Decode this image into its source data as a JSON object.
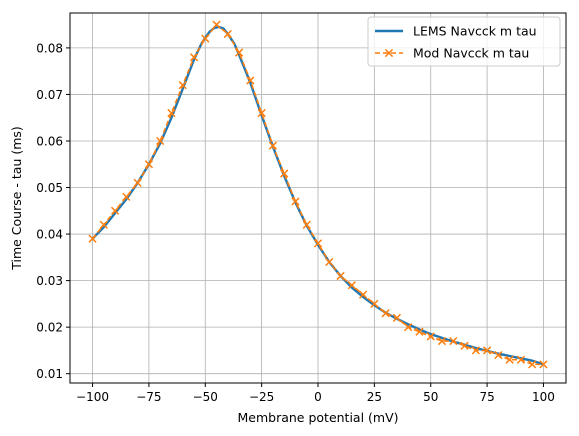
{
  "chart_data": {
    "type": "line",
    "title": "",
    "xlabel": "Membrane potential (mV)",
    "ylabel": "Time Course - tau (ms)",
    "xlim": [
      -110,
      110
    ],
    "ylim": [
      0.008,
      0.0875
    ],
    "xticks": [
      -100,
      -75,
      -50,
      -25,
      0,
      25,
      50,
      75,
      100
    ],
    "xtick_labels": [
      "−100",
      "−75",
      "−50",
      "−25",
      "0",
      "25",
      "50",
      "75",
      "100"
    ],
    "yticks": [
      0.01,
      0.02,
      0.03,
      0.04,
      0.05,
      0.06,
      0.07,
      0.08
    ],
    "ytick_labels": [
      "0.01",
      "0.02",
      "0.03",
      "0.04",
      "0.05",
      "0.06",
      "0.07",
      "0.08"
    ],
    "grid": true,
    "legend_position": "top-right",
    "series": [
      {
        "name": "LEMS Navcck m tau",
        "style": "solid line",
        "color": "#1f77b4",
        "x": [
          -100,
          -95,
          -90,
          -85,
          -80,
          -75,
          -70,
          -65,
          -60,
          -55,
          -52,
          -50,
          -48,
          -46,
          -44,
          -42,
          -40,
          -37,
          -35,
          -30,
          -25,
          -20,
          -15,
          -10,
          -5,
          0,
          5,
          10,
          15,
          20,
          25,
          30,
          35,
          40,
          45,
          50,
          55,
          60,
          65,
          70,
          75,
          80,
          85,
          90,
          95,
          100
        ],
        "y": [
          0.039,
          0.0415,
          0.0445,
          0.0475,
          0.051,
          0.055,
          0.0595,
          0.065,
          0.0712,
          0.0775,
          0.0806,
          0.0822,
          0.0835,
          0.0843,
          0.0845,
          0.0842,
          0.083,
          0.0808,
          0.0785,
          0.0725,
          0.0655,
          0.0588,
          0.0525,
          0.0468,
          0.0418,
          0.0377,
          0.034,
          0.031,
          0.0285,
          0.0265,
          0.0247,
          0.0231,
          0.0218,
          0.0206,
          0.0195,
          0.0185,
          0.0177,
          0.0169,
          0.0162,
          0.0155,
          0.0149,
          0.0143,
          0.0138,
          0.0133,
          0.0128,
          0.012
        ]
      },
      {
        "name": "Mod Navcck m tau",
        "style": "dashed line with x markers",
        "color": "#ff7f0e",
        "x": [
          -100,
          -95,
          -90,
          -85,
          -80,
          -75,
          -70,
          -65,
          -60,
          -55,
          -50,
          -45,
          -40,
          -35,
          -30,
          -25,
          -20,
          -15,
          -10,
          -5,
          0,
          5,
          10,
          15,
          20,
          25,
          30,
          35,
          40,
          45,
          50,
          55,
          60,
          65,
          70,
          75,
          80,
          85,
          90,
          95,
          100
        ],
        "y": [
          0.039,
          0.042,
          0.045,
          0.048,
          0.051,
          0.055,
          0.06,
          0.066,
          0.072,
          0.078,
          0.082,
          0.085,
          0.083,
          0.079,
          0.073,
          0.066,
          0.059,
          0.053,
          0.047,
          0.042,
          0.038,
          0.034,
          0.031,
          0.029,
          0.027,
          0.025,
          0.023,
          0.022,
          0.02,
          0.019,
          0.018,
          0.017,
          0.017,
          0.016,
          0.015,
          0.015,
          0.014,
          0.013,
          0.013,
          0.012,
          0.012
        ]
      }
    ]
  }
}
